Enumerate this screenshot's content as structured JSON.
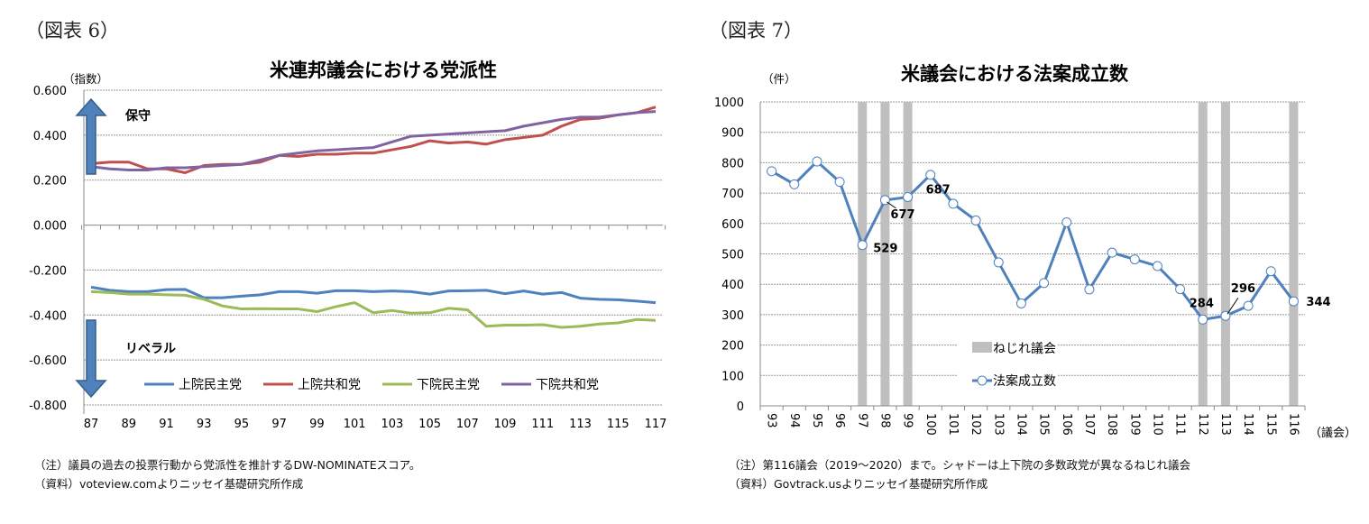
{
  "left": {
    "figure_label": "（図表 6）",
    "notes": [
      "（注）議員の過去の投票行動から党派性を推計するDW-NOMINATEスコア。",
      "（資料）voteview.comよりニッセイ基礎研究所作成"
    ]
  },
  "right": {
    "figure_label": "（図表 7）",
    "notes": [
      "（注）第116議会（2019～2020）まで。シャドーは上下院の多数政党が異なるねじれ議会",
      "（資料）Govtrack.usよりニッセイ基礎研究所作成"
    ]
  },
  "chart_data": [
    {
      "type": "line",
      "title": "米連邦議会における党派性",
      "ylabel": "（指数）",
      "ylim": [
        -0.8,
        0.6
      ],
      "yticks": [
        "0.600",
        "0.400",
        "0.200",
        "0.000",
        "-0.200",
        "-0.400",
        "-0.600",
        "-0.800"
      ],
      "x": [
        87,
        88,
        89,
        90,
        91,
        92,
        93,
        94,
        95,
        96,
        97,
        98,
        99,
        100,
        101,
        102,
        103,
        104,
        105,
        106,
        107,
        108,
        109,
        110,
        111,
        112,
        113,
        114,
        115,
        116,
        117
      ],
      "xtick_labels": [
        "87",
        "89",
        "91",
        "93",
        "95",
        "97",
        "99",
        "101",
        "103",
        "105",
        "107",
        "109",
        "111",
        "113",
        "115",
        "117"
      ],
      "grid": true,
      "legend": "bottom",
      "annotations": {
        "up": "保守",
        "down": "リベラル"
      },
      "series": [
        {
          "name": "上院民主党",
          "color": "#4f81bd",
          "values": [
            -0.276,
            -0.29,
            -0.296,
            -0.296,
            -0.287,
            -0.286,
            -0.323,
            -0.323,
            -0.316,
            -0.31,
            -0.296,
            -0.296,
            -0.303,
            -0.292,
            -0.292,
            -0.296,
            -0.293,
            -0.296,
            -0.307,
            -0.293,
            -0.292,
            -0.29,
            -0.305,
            -0.293,
            -0.307,
            -0.3,
            -0.325,
            -0.33,
            -0.332,
            -0.338,
            -0.345
          ]
        },
        {
          "name": "上院共和党",
          "color": "#c0504d",
          "values": [
            0.273,
            0.28,
            0.28,
            0.25,
            0.25,
            0.233,
            0.265,
            0.27,
            0.27,
            0.28,
            0.31,
            0.305,
            0.315,
            0.315,
            0.32,
            0.32,
            0.335,
            0.35,
            0.375,
            0.365,
            0.37,
            0.36,
            0.38,
            0.39,
            0.4,
            0.44,
            0.47,
            0.475,
            0.49,
            0.5,
            0.525
          ]
        },
        {
          "name": "下院民主党",
          "color": "#9bbb59",
          "values": [
            -0.296,
            -0.3,
            -0.307,
            -0.307,
            -0.31,
            -0.312,
            -0.33,
            -0.36,
            -0.373,
            -0.372,
            -0.373,
            -0.373,
            -0.385,
            -0.363,
            -0.345,
            -0.39,
            -0.38,
            -0.392,
            -0.39,
            -0.37,
            -0.377,
            -0.45,
            -0.445,
            -0.445,
            -0.443,
            -0.455,
            -0.45,
            -0.44,
            -0.435,
            -0.42,
            -0.424
          ]
        },
        {
          "name": "下院共和党",
          "color": "#8064a2",
          "values": [
            0.26,
            0.25,
            0.245,
            0.245,
            0.255,
            0.255,
            0.26,
            0.265,
            0.27,
            0.29,
            0.31,
            0.32,
            0.33,
            0.335,
            0.34,
            0.345,
            0.37,
            0.395,
            0.4,
            0.405,
            0.41,
            0.415,
            0.42,
            0.44,
            0.455,
            0.47,
            0.48,
            0.48,
            0.49,
            0.5,
            0.505
          ]
        }
      ]
    },
    {
      "type": "line",
      "title": "米議会における法案成立数",
      "ylabel": "（件）",
      "xlabel": "（議会）",
      "ylim": [
        0,
        1000
      ],
      "yticks": [
        "1000",
        "900",
        "800",
        "700",
        "600",
        "500",
        "400",
        "300",
        "200",
        "100",
        "0"
      ],
      "categories": [
        "93",
        "94",
        "95",
        "96",
        "97",
        "98",
        "99",
        "100",
        "101",
        "102",
        "103",
        "104",
        "105",
        "106",
        "107",
        "108",
        "109",
        "110",
        "111",
        "112",
        "113",
        "114",
        "115",
        "116"
      ],
      "grid": true,
      "legend": "center-bottom",
      "shaded_name": "ねじれ議会",
      "shaded_color": "#bfbfbf",
      "shaded_categories": [
        "97",
        "98",
        "99",
        "112",
        "113",
        "116"
      ],
      "series": [
        {
          "name": "法案成立数",
          "color": "#4f81bd",
          "values": [
            772,
            729,
            804,
            737,
            529,
            677,
            687,
            760,
            665,
            610,
            472,
            337,
            404,
            604,
            383,
            504,
            482,
            460,
            384,
            284,
            296,
            329,
            443,
            344
          ]
        }
      ],
      "data_labels": [
        {
          "category": "97",
          "text": "529"
        },
        {
          "category": "98",
          "text": "677"
        },
        {
          "category": "99",
          "text": "687"
        },
        {
          "category": "112",
          "text": "284"
        },
        {
          "category": "113",
          "text": "296"
        },
        {
          "category": "116",
          "text": "344"
        }
      ]
    }
  ]
}
